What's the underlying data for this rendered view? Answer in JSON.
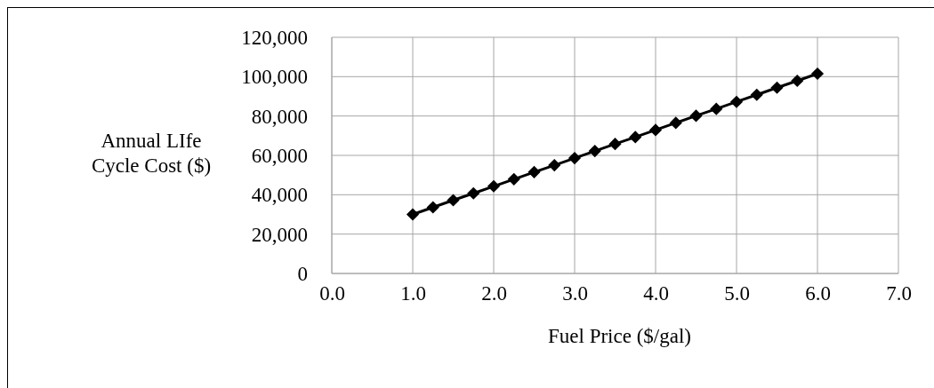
{
  "chart_data": {
    "type": "line",
    "xlabel": "Fuel Price ($/gal)",
    "ylabel": "Annual LIfe Cycle Cost ($)",
    "x": [
      1,
      1.25,
      1.5,
      1.75,
      2,
      2.25,
      2.5,
      2.75,
      3,
      3.25,
      3.5,
      3.75,
      4,
      4.25,
      4.5,
      4.75,
      5,
      5.25,
      5.5,
      5.75,
      6
    ],
    "series": [
      {
        "color": "#000000",
        "values": [
          30000,
          33600,
          37200,
          40700,
          44300,
          47900,
          51500,
          55000,
          58600,
          62200,
          65800,
          69300,
          72900,
          76500,
          80100,
          83600,
          87200,
          90800,
          94400,
          97900,
          101500
        ]
      }
    ],
    "xlim": [
      0,
      7
    ],
    "xticks": [
      {
        "value": 0,
        "label": "0.0"
      },
      {
        "value": 1,
        "label": "1.0"
      },
      {
        "value": 2,
        "label": "2.0"
      },
      {
        "value": 3,
        "label": "3.0"
      },
      {
        "value": 4,
        "label": "4.0"
      },
      {
        "value": 5,
        "label": "5.0"
      },
      {
        "value": 6,
        "label": "6.0"
      },
      {
        "value": 7,
        "label": "7.0"
      }
    ],
    "ylim": [
      0,
      120000
    ],
    "yticks": [
      0,
      {
        "value": 20000,
        "label": "20,000"
      },
      {
        "value": 40000,
        "label": "40,000"
      },
      {
        "value": 60000,
        "label": "60,000"
      },
      {
        "value": 80000,
        "label": "80,000"
      },
      {
        "value": 100000,
        "label": "100,000"
      },
      {
        "value": 120000,
        "label": "120,000"
      }
    ],
    "grid": true,
    "marker": "diamond",
    "line_style": "solid"
  }
}
